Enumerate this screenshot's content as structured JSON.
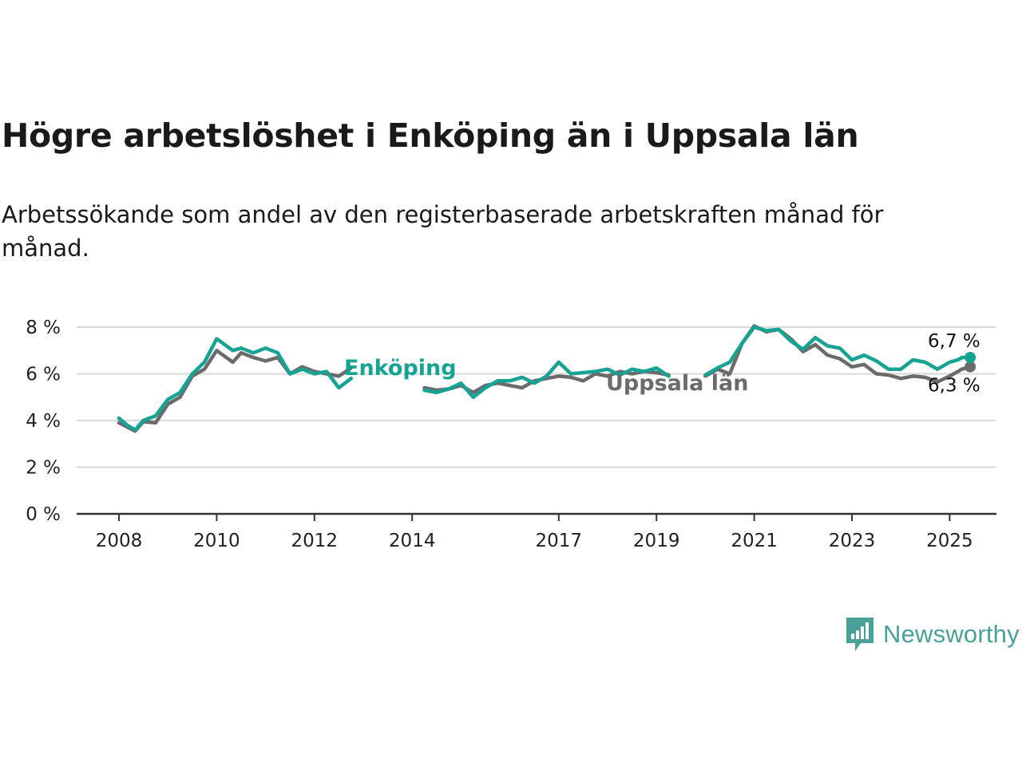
{
  "title": "Högre arbetslöshet i Enköping än i Uppsala län",
  "subtitle": "Arbetssökande som andel av den registerbaserade arbetskraften månad för månad.",
  "brand": {
    "name": "Newsworthy",
    "color": "#4a9f96",
    "icon": "newsworthy-bar-chart-icon"
  },
  "chart_data": {
    "type": "line",
    "xlabel": "",
    "ylabel": "",
    "xlim": [
      2007.75,
      2026.0
    ],
    "ylim": [
      0,
      8
    ],
    "x_ticks": [
      2008,
      2010,
      2012,
      2014,
      2017,
      2019,
      2021,
      2023,
      2025
    ],
    "y_ticks": [
      0,
      2,
      4,
      6,
      8
    ],
    "y_tick_labels": [
      "0 %",
      "2 %",
      "4 %",
      "6 %",
      "8 %"
    ],
    "grid": "horizontal",
    "legend": "inline labels",
    "series": [
      {
        "name": "Uppsala län",
        "color": "#6b6b6b",
        "end_label": "6,3 %",
        "points": [
          [
            2008.0,
            3.9
          ],
          [
            2008.33,
            3.55
          ],
          [
            2008.5,
            3.95
          ],
          [
            2008.75,
            3.9
          ],
          [
            2009.0,
            4.7
          ],
          [
            2009.25,
            5.0
          ],
          [
            2009.5,
            5.9
          ],
          [
            2009.75,
            6.2
          ],
          [
            2010.0,
            7.0
          ],
          [
            2010.33,
            6.5
          ],
          [
            2010.5,
            6.9
          ],
          [
            2010.75,
            6.7
          ],
          [
            2011.0,
            6.55
          ],
          [
            2011.25,
            6.7
          ],
          [
            2011.5,
            6.0
          ],
          [
            2011.75,
            6.3
          ],
          [
            2012.0,
            6.1
          ],
          [
            2012.25,
            6.0
          ],
          [
            2012.5,
            5.9
          ],
          [
            2012.75,
            6.25
          ],
          [
            2014.25,
            5.4
          ],
          [
            2014.5,
            5.3
          ],
          [
            2014.75,
            5.35
          ],
          [
            2015.0,
            5.5
          ],
          [
            2015.25,
            5.2
          ],
          [
            2015.5,
            5.5
          ],
          [
            2015.75,
            5.6
          ],
          [
            2016.0,
            5.5
          ],
          [
            2016.25,
            5.4
          ],
          [
            2016.5,
            5.7
          ],
          [
            2016.75,
            5.8
          ],
          [
            2017.0,
            5.9
          ],
          [
            2017.25,
            5.85
          ],
          [
            2017.5,
            5.7
          ],
          [
            2017.75,
            6.0
          ],
          [
            2018.0,
            5.9
          ],
          [
            2018.25,
            6.1
          ],
          [
            2018.5,
            6.0
          ],
          [
            2018.75,
            6.1
          ],
          [
            2019.0,
            6.05
          ],
          [
            2019.25,
            5.95
          ],
          [
            2020.0,
            5.9
          ],
          [
            2020.25,
            6.2
          ],
          [
            2020.5,
            6.0
          ],
          [
            2020.75,
            7.3
          ],
          [
            2021.0,
            8.05
          ],
          [
            2021.25,
            7.8
          ],
          [
            2021.5,
            7.9
          ],
          [
            2021.75,
            7.5
          ],
          [
            2022.0,
            6.95
          ],
          [
            2022.25,
            7.25
          ],
          [
            2022.5,
            6.8
          ],
          [
            2022.75,
            6.65
          ],
          [
            2023.0,
            6.3
          ],
          [
            2023.25,
            6.4
          ],
          [
            2023.5,
            6.0
          ],
          [
            2023.75,
            5.95
          ],
          [
            2024.0,
            5.8
          ],
          [
            2024.25,
            5.9
          ],
          [
            2024.5,
            5.85
          ],
          [
            2024.75,
            5.65
          ],
          [
            2025.0,
            5.9
          ],
          [
            2025.17,
            6.1
          ],
          [
            2025.25,
            6.2
          ],
          [
            2025.42,
            6.3
          ]
        ]
      },
      {
        "name": "Enköping",
        "color": "#16a394",
        "end_label": "6,7 %",
        "points": [
          [
            2008.0,
            4.1
          ],
          [
            2008.17,
            3.8
          ],
          [
            2008.33,
            3.6
          ],
          [
            2008.5,
            4.0
          ],
          [
            2008.75,
            4.2
          ],
          [
            2009.0,
            4.9
          ],
          [
            2009.25,
            5.2
          ],
          [
            2009.5,
            6.0
          ],
          [
            2009.75,
            6.5
          ],
          [
            2010.0,
            7.5
          ],
          [
            2010.33,
            7.0
          ],
          [
            2010.5,
            7.1
          ],
          [
            2010.75,
            6.9
          ],
          [
            2011.0,
            7.1
          ],
          [
            2011.25,
            6.9
          ],
          [
            2011.5,
            6.0
          ],
          [
            2011.75,
            6.2
          ],
          [
            2012.0,
            6.0
          ],
          [
            2012.25,
            6.1
          ],
          [
            2012.5,
            5.4
          ],
          [
            2012.75,
            5.8
          ],
          [
            2014.25,
            5.3
          ],
          [
            2014.5,
            5.2
          ],
          [
            2014.75,
            5.35
          ],
          [
            2015.0,
            5.6
          ],
          [
            2015.25,
            5.0
          ],
          [
            2015.5,
            5.4
          ],
          [
            2015.75,
            5.7
          ],
          [
            2016.0,
            5.7
          ],
          [
            2016.25,
            5.85
          ],
          [
            2016.5,
            5.6
          ],
          [
            2016.75,
            5.9
          ],
          [
            2017.0,
            6.5
          ],
          [
            2017.25,
            6.0
          ],
          [
            2017.5,
            6.05
          ],
          [
            2017.75,
            6.1
          ],
          [
            2018.0,
            6.2
          ],
          [
            2018.25,
            5.95
          ],
          [
            2018.5,
            6.2
          ],
          [
            2018.75,
            6.1
          ],
          [
            2019.0,
            6.25
          ],
          [
            2019.25,
            5.9
          ],
          [
            2020.0,
            5.95
          ],
          [
            2020.25,
            6.25
          ],
          [
            2020.5,
            6.5
          ],
          [
            2020.75,
            7.3
          ],
          [
            2021.0,
            8.0
          ],
          [
            2021.25,
            7.85
          ],
          [
            2021.5,
            7.9
          ],
          [
            2021.75,
            7.4
          ],
          [
            2022.0,
            7.05
          ],
          [
            2022.25,
            7.55
          ],
          [
            2022.5,
            7.2
          ],
          [
            2022.75,
            7.1
          ],
          [
            2023.0,
            6.6
          ],
          [
            2023.25,
            6.8
          ],
          [
            2023.5,
            6.55
          ],
          [
            2023.75,
            6.2
          ],
          [
            2024.0,
            6.2
          ],
          [
            2024.25,
            6.6
          ],
          [
            2024.5,
            6.5
          ],
          [
            2024.75,
            6.2
          ],
          [
            2025.0,
            6.5
          ],
          [
            2025.17,
            6.6
          ],
          [
            2025.25,
            6.7
          ],
          [
            2025.42,
            6.7
          ]
        ]
      }
    ]
  }
}
